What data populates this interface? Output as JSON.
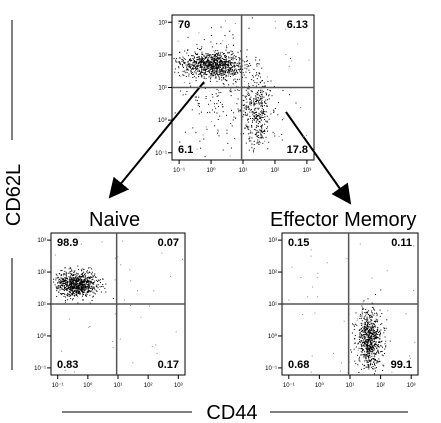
{
  "axis_labels": {
    "x": "CD44",
    "y": "CD62L"
  },
  "tick_labels": [
    "10⁻¹",
    "10⁰",
    "10¹",
    "10²",
    "10³"
  ],
  "populations": {
    "naive": "Naive",
    "effector_memory": "Effector Memory"
  },
  "plots": [
    {
      "id": "total",
      "quadrants": {
        "ul": "70",
        "ur": "6.13",
        "ll": "6.1",
        "lr": "17.8"
      }
    },
    {
      "id": "naive",
      "quadrants": {
        "ul": "98.9",
        "ur": "0.07",
        "ll": "0.83",
        "lr": "0.17"
      }
    },
    {
      "id": "effector-memory",
      "quadrants": {
        "ul": "0.15",
        "ur": "0.11",
        "ll": "0.68",
        "lr": "99.1"
      }
    }
  ],
  "colors": {
    "ink": "#000000",
    "dots": "#000000",
    "background": "#ffffff"
  }
}
